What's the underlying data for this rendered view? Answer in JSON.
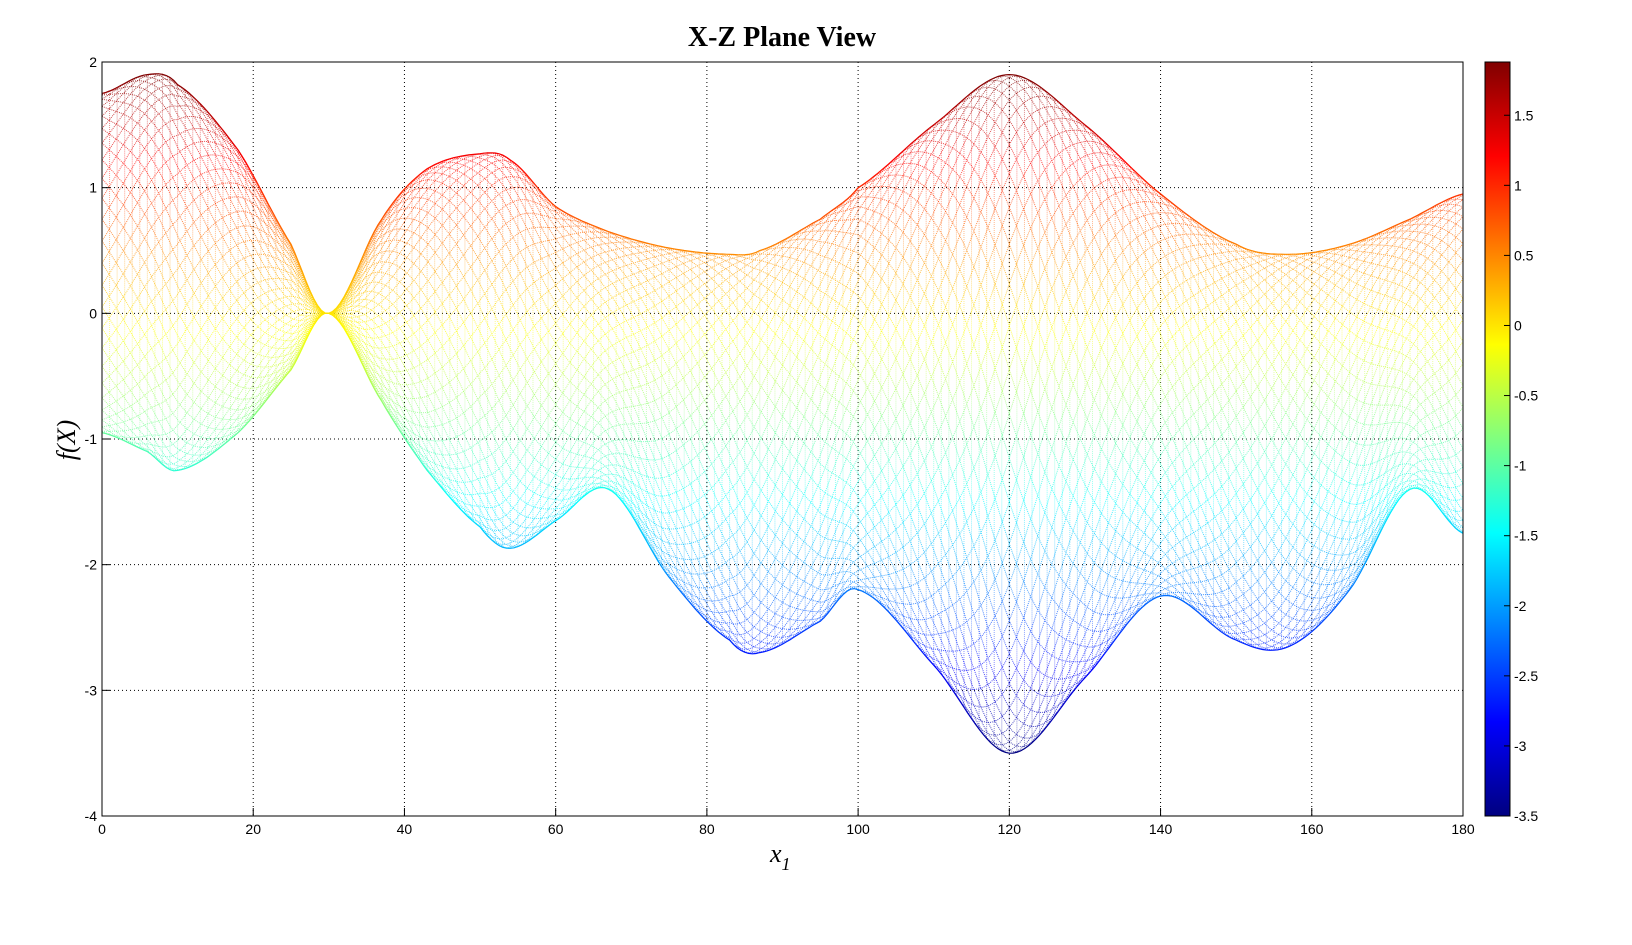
{
  "chart_data": {
    "type": "scatter",
    "title": "X-Z Plane View",
    "xlabel": "x",
    "xlabel_subscript": "1",
    "ylabel": "f(X)",
    "xlim": [
      0,
      180
    ],
    "ylim": [
      -4,
      2
    ],
    "xticks": [
      0,
      20,
      40,
      60,
      80,
      100,
      120,
      140,
      160,
      180
    ],
    "yticks": [
      -4,
      -3,
      -2,
      -1,
      0,
      1,
      2
    ],
    "grid": true,
    "colormap": "jet",
    "colorbar": {
      "range": [
        -3.5,
        1.88
      ],
      "ticks": [
        -3.5,
        -3,
        -2.5,
        -2,
        -1.5,
        -1,
        -0.5,
        0,
        0.5,
        1,
        1.5
      ],
      "placement": "right"
    },
    "envelope": {
      "x": [
        0,
        6,
        10,
        18,
        25,
        30,
        37,
        43,
        50,
        54,
        60,
        67,
        75,
        83,
        87,
        95,
        100,
        110,
        120,
        130,
        140,
        150,
        157,
        165,
        173,
        180
      ],
      "upper": [
        1.75,
        1.9,
        1.82,
        1.3,
        0.55,
        0,
        0.75,
        1.15,
        1.27,
        1.22,
        0.85,
        0.65,
        0.52,
        0.47,
        0.5,
        0.75,
        1.0,
        1.5,
        1.9,
        1.5,
        0.95,
        0.55,
        0.47,
        0.55,
        0.75,
        0.95
      ],
      "lower": [
        -0.95,
        -1.1,
        -1.25,
        -0.95,
        -0.45,
        0,
        -0.7,
        -1.25,
        -1.7,
        -1.87,
        -1.65,
        -1.4,
        -2.1,
        -2.6,
        -2.7,
        -2.45,
        -2.2,
        -2.8,
        -3.5,
        -2.9,
        -2.25,
        -2.6,
        -2.65,
        -2.2,
        -1.4,
        -1.75
      ]
    }
  }
}
